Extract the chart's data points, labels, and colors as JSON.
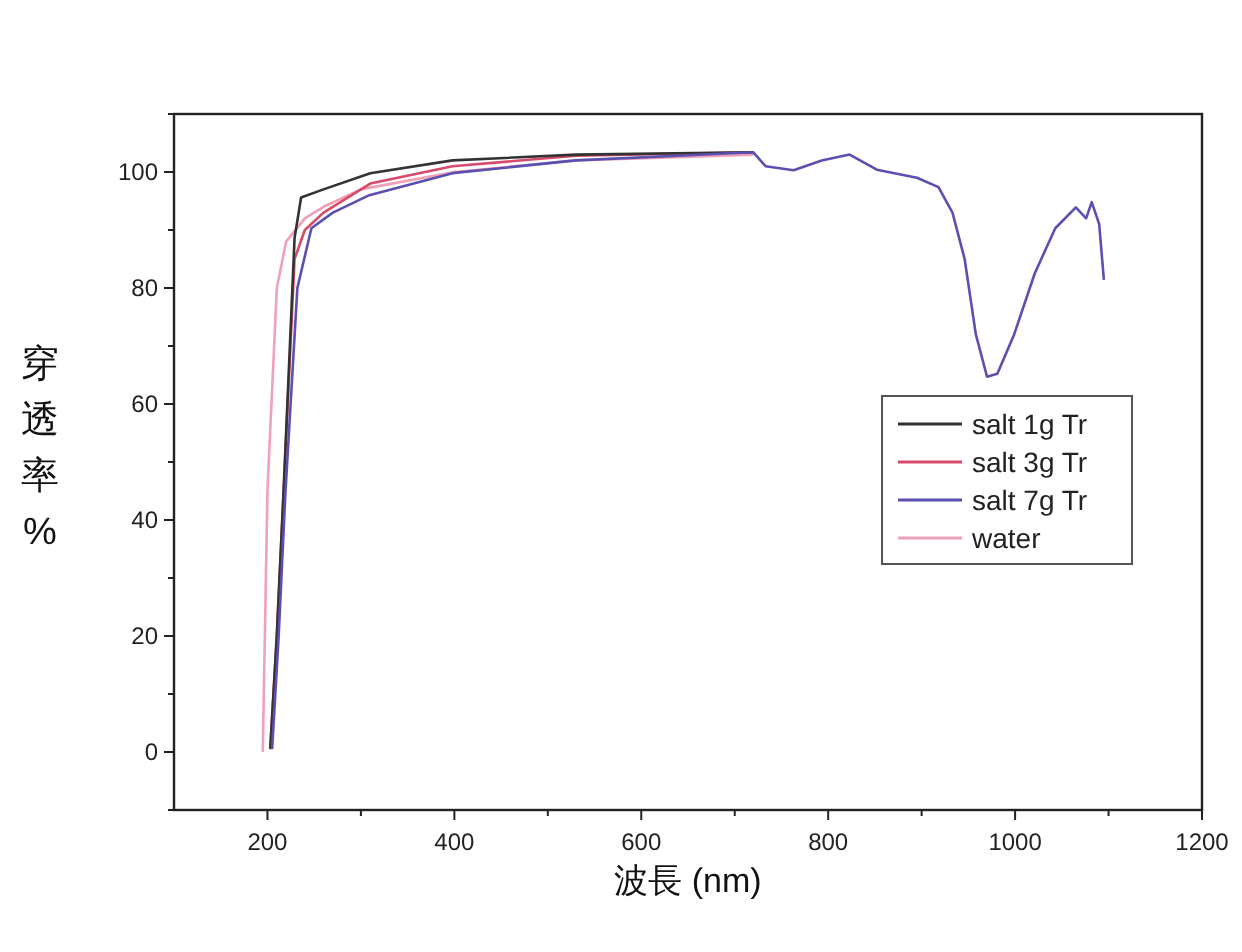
{
  "chart_data": {
    "type": "line",
    "xlabel": "波長 (nm)",
    "ylabel": "穿透率%",
    "xlim": [
      100,
      1200
    ],
    "ylim": [
      -10,
      110
    ],
    "xticks": [
      200,
      {
        "value": 300,
        "label": null
      },
      400,
      {
        "value": 500,
        "label": null
      },
      600,
      {
        "value": 700,
        "label": null
      },
      800,
      {
        "value": 900,
        "label": null
      },
      1000,
      {
        "value": 1100,
        "label": null
      },
      1200
    ],
    "yticks": [
      {
        "value": -10,
        "label": null
      },
      0,
      {
        "value": 10,
        "label": null
      },
      20,
      {
        "value": 30,
        "label": null
      },
      40,
      {
        "value": 50,
        "label": null
      },
      60,
      {
        "value": 70,
        "label": null
      },
      80,
      {
        "value": 90,
        "label": null
      },
      100,
      {
        "value": 110,
        "label": null
      }
    ],
    "grid": false,
    "legend": "right",
    "marker": "none",
    "line_style": "solid",
    "series": [
      {
        "name": "water",
        "color": "#f0a0b8",
        "x": [
          195,
          200,
          210,
          220,
          240,
          260,
          300,
          400,
          530,
          720
        ],
        "values": [
          0,
          45,
          80,
          88,
          92,
          94,
          97,
          100,
          102,
          103
        ]
      },
      {
        "name": "salt 3g Tr",
        "color": "#d94a6a",
        "x": [
          203,
          210,
          217,
          229,
          240,
          260,
          310,
          398,
          530,
          720
        ],
        "values": [
          0.5,
          20,
          44,
          85,
          90,
          93,
          98,
          101,
          102.8,
          103.4
        ]
      },
      {
        "name": "salt 1g Tr",
        "color": "#333333",
        "x": [
          203,
          210,
          217,
          229,
          236,
          260,
          310,
          398,
          530,
          720
        ],
        "values": [
          0.5,
          20,
          44,
          88.6,
          95.6,
          97,
          99.8,
          102,
          103,
          103.4
        ]
      },
      {
        "name": "salt 7g Tr",
        "color": "#5a50b0",
        "x": [
          205,
          212,
          219,
          232,
          247,
          270,
          309,
          398,
          530,
          720,
          733,
          763,
          793,
          823,
          852,
          895,
          918,
          933,
          946,
          958,
          970,
          981,
          999,
          1021,
          1043,
          1065,
          1076,
          1082,
          1090,
          1095
        ],
        "values": [
          0.5,
          20,
          44,
          80,
          90.3,
          93,
          96,
          99.8,
          102,
          103.4,
          101,
          100.3,
          102,
          103,
          100.4,
          99,
          97.4,
          93,
          85,
          72,
          64.7,
          65.2,
          72,
          82.5,
          90.3,
          93.9,
          92,
          94.8,
          91,
          81.4
        ]
      }
    ]
  }
}
